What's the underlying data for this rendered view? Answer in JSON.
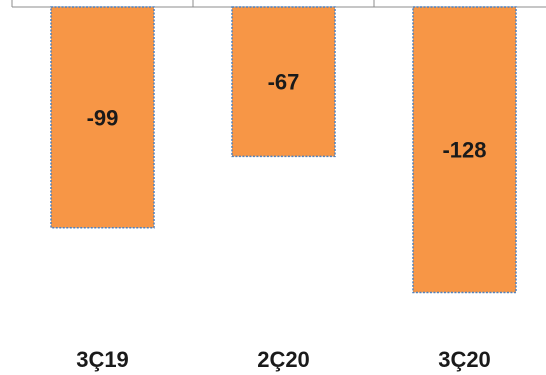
{
  "chart_data": {
    "type": "bar",
    "categories": [
      "3Ç19",
      "2Ç20",
      "3Ç20"
    ],
    "values": [
      -99,
      -67,
      -128
    ],
    "data_labels": [
      "-99",
      "-67",
      "-128"
    ],
    "title": "",
    "xlabel": "",
    "ylabel": "",
    "ylim": [
      -140,
      0
    ],
    "grid": false,
    "legend": "none",
    "bar_color": "#F79646",
    "bar_border_color": "#4F81BD",
    "axis_color": "#8C8C8C"
  }
}
